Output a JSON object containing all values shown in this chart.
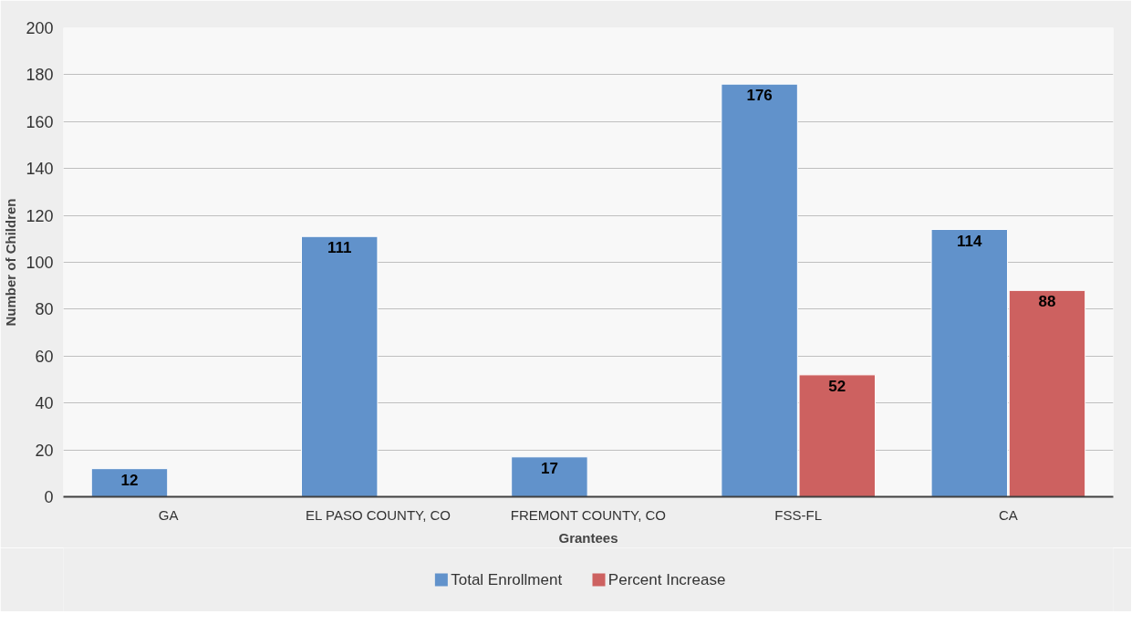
{
  "chart_data": {
    "type": "bar",
    "xlabel": "Grantees",
    "ylabel": "Number of Children",
    "categories": [
      "GA",
      "EL PASO COUNTY, CO",
      "FREMONT COUNTY, CO",
      "FSS-FL",
      "CA"
    ],
    "series": [
      {
        "name": "Total Enrollment",
        "color": "#6192cb",
        "values": [
          12,
          111,
          17,
          176,
          114
        ]
      },
      {
        "name": "Percent Increase",
        "color": "#cd6160",
        "values": [
          null,
          null,
          null,
          52,
          88
        ]
      }
    ],
    "ylim": [
      0,
      200
    ],
    "yticks": [
      0,
      20,
      40,
      60,
      80,
      100,
      120,
      140,
      160,
      180,
      200
    ],
    "grid": "y",
    "legend": "bottom",
    "data_labels": true
  }
}
